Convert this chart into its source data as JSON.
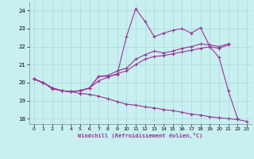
{
  "bg_color": "#c8f0f0",
  "grid_color": "#a8dada",
  "line_color": "#993399",
  "xlim": [
    -0.5,
    23.5
  ],
  "ylim": [
    17.7,
    24.5
  ],
  "yticks": [
    18,
    19,
    20,
    21,
    22,
    23,
    24
  ],
  "xticks": [
    0,
    1,
    2,
    3,
    4,
    5,
    6,
    7,
    8,
    9,
    10,
    11,
    12,
    13,
    14,
    15,
    16,
    17,
    18,
    19,
    20,
    21,
    22,
    23
  ],
  "xlabel": "Windchill (Refroidissement éolien,°C)",
  "line1_x": [
    0,
    1,
    2,
    3,
    4,
    5,
    6,
    7,
    8,
    9,
    10,
    11,
    12,
    13,
    14,
    15,
    16,
    17,
    18,
    19,
    20,
    21,
    22
  ],
  "line1_y": [
    20.2,
    20.0,
    19.7,
    19.55,
    19.5,
    19.55,
    19.7,
    20.35,
    20.35,
    20.45,
    22.55,
    24.1,
    23.4,
    22.55,
    22.75,
    22.9,
    23.0,
    22.75,
    23.05,
    22.0,
    21.4,
    19.55,
    18.0
  ],
  "line2_x": [
    0,
    1,
    2,
    3,
    4,
    5,
    6,
    7,
    8,
    9,
    10,
    11,
    12,
    13,
    14,
    15,
    16,
    17,
    18,
    19,
    20,
    21
  ],
  "line2_y": [
    20.2,
    20.0,
    19.7,
    19.55,
    19.5,
    19.55,
    19.7,
    20.35,
    20.4,
    20.65,
    20.8,
    21.3,
    21.55,
    21.75,
    21.65,
    21.75,
    21.9,
    22.0,
    22.15,
    22.1,
    22.0,
    22.15
  ],
  "line3_x": [
    0,
    1,
    2,
    3,
    4,
    5,
    6,
    7,
    8,
    9,
    10,
    11,
    12,
    13,
    14,
    15,
    16,
    17,
    18,
    19,
    20,
    21
  ],
  "line3_y": [
    20.2,
    20.0,
    19.7,
    19.55,
    19.5,
    19.55,
    19.7,
    20.1,
    20.3,
    20.5,
    20.65,
    21.0,
    21.3,
    21.45,
    21.5,
    21.6,
    21.7,
    21.8,
    21.9,
    22.0,
    21.9,
    22.1
  ],
  "line4_x": [
    0,
    1,
    2,
    3,
    4,
    5,
    6,
    7,
    8,
    9,
    10,
    11,
    12,
    13,
    14,
    15,
    16,
    17,
    18,
    19,
    20,
    21,
    22,
    23
  ],
  "line4_y": [
    20.2,
    20.0,
    19.65,
    19.55,
    19.5,
    19.4,
    19.35,
    19.25,
    19.1,
    18.95,
    18.8,
    18.75,
    18.65,
    18.6,
    18.5,
    18.45,
    18.35,
    18.25,
    18.2,
    18.1,
    18.05,
    18.0,
    17.95,
    17.85
  ]
}
